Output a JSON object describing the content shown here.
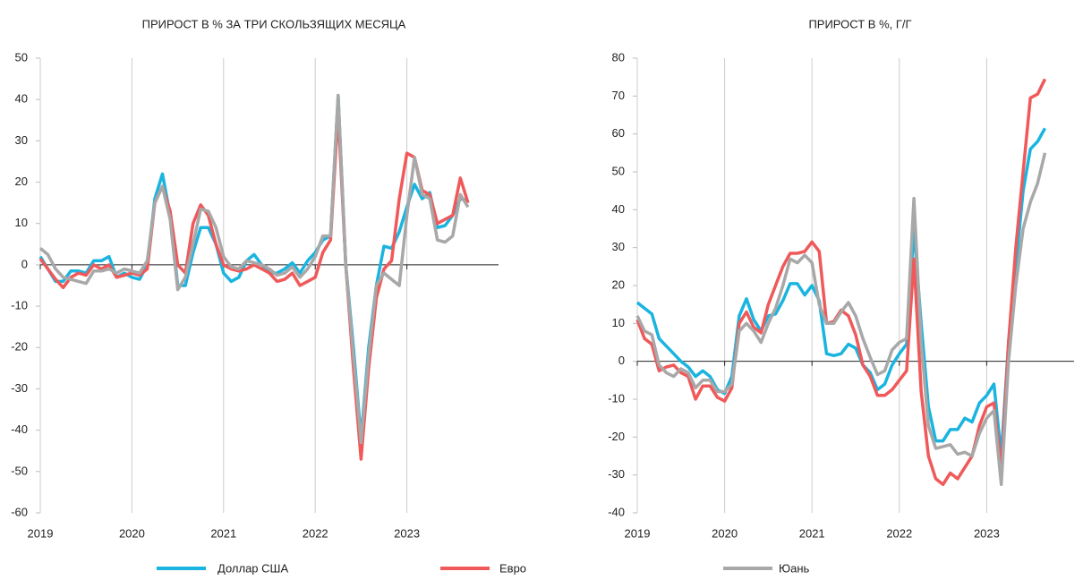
{
  "chart_data": [
    {
      "type": "line",
      "title": "ПРИРОСТ В % ЗА ТРИ СКОЛЬЗЯЩИХ МЕСЯЦА",
      "x": [
        2019,
        2019.083,
        2019.167,
        2019.25,
        2019.333,
        2019.417,
        2019.5,
        2019.583,
        2019.667,
        2019.75,
        2019.833,
        2019.917,
        2020,
        2020.083,
        2020.167,
        2020.25,
        2020.333,
        2020.417,
        2020.5,
        2020.583,
        2020.667,
        2020.75,
        2020.833,
        2020.917,
        2021,
        2021.083,
        2021.167,
        2021.25,
        2021.333,
        2021.417,
        2021.5,
        2021.583,
        2021.667,
        2021.75,
        2021.833,
        2021.917,
        2022,
        2022.083,
        2022.167,
        2022.25,
        2022.333,
        2022.417,
        2022.5,
        2022.583,
        2022.667,
        2022.75,
        2022.833,
        2022.917,
        2023,
        2023.083,
        2023.167,
        2023.25,
        2023.333,
        2023.417,
        2023.5,
        2023.583,
        2023.667
      ],
      "xlim": [
        2019,
        2024
      ],
      "xticks": [
        2019,
        2020,
        2021,
        2022,
        2023
      ],
      "ylim": [
        -60,
        50
      ],
      "yticks": [
        -60,
        -50,
        -40,
        -30,
        -20,
        -10,
        0,
        10,
        20,
        30,
        40,
        50
      ],
      "grid": "x",
      "series": [
        {
          "name": "Доллар США",
          "color": "#1ab4e0",
          "values": [
            2,
            -1,
            -4,
            -4,
            -1.5,
            -1.5,
            -2,
            1,
            1,
            2,
            -3,
            -2,
            -3,
            -3.5,
            0,
            16,
            22,
            12,
            -5,
            -5,
            3,
            9,
            9,
            5,
            -2,
            -4,
            -3,
            1,
            2.5,
            0,
            -2,
            -2,
            -1,
            0.5,
            -2,
            1,
            3,
            6,
            7,
            41,
            0,
            -20,
            -42,
            -20,
            -5,
            4.5,
            4,
            8,
            14,
            19.5,
            16,
            17.5,
            9,
            9.5,
            12,
            16,
            15.5
          ]
        },
        {
          "name": "Евро",
          "color": "#f0595a",
          "values": [
            1.5,
            -1,
            -3.5,
            -5.5,
            -3,
            -2,
            -2.5,
            0,
            -1,
            0,
            -3,
            -2.5,
            -2,
            -2.5,
            -1,
            15,
            19,
            13,
            0,
            -2,
            10,
            14.5,
            12,
            5,
            0,
            -1,
            -1.5,
            -1,
            0,
            -1,
            -2,
            -4,
            -3.5,
            -2,
            -5,
            -4,
            -3,
            3,
            6,
            37,
            0,
            -25,
            -47,
            -25,
            -8,
            -1,
            1,
            16,
            27,
            26,
            18,
            17,
            10,
            11,
            12,
            21,
            15
          ]
        },
        {
          "name": "Юань",
          "color": "#a8a8a8",
          "values": [
            4,
            2.5,
            -1,
            -3,
            -3.5,
            -4,
            -4.5,
            -1.5,
            -1.5,
            -1,
            -2,
            -1,
            -1.5,
            -2,
            1,
            15,
            19,
            11,
            -6,
            -3,
            5,
            13.5,
            13,
            9,
            2,
            -0.5,
            -1,
            1,
            0.5,
            0,
            -1,
            -2.5,
            -2,
            -0.5,
            -3,
            -1,
            2,
            7,
            7,
            41,
            0,
            -22,
            -43,
            -22,
            -5,
            -2,
            -3.5,
            -5,
            12,
            26,
            17,
            16,
            6,
            5.5,
            7,
            17,
            14
          ]
        }
      ]
    },
    {
      "type": "line",
      "title": "ПРИРОСТ В %, Г/Г",
      "x": [
        2019,
        2019.083,
        2019.167,
        2019.25,
        2019.333,
        2019.417,
        2019.5,
        2019.583,
        2019.667,
        2019.75,
        2019.833,
        2019.917,
        2020,
        2020.083,
        2020.167,
        2020.25,
        2020.333,
        2020.417,
        2020.5,
        2020.583,
        2020.667,
        2020.75,
        2020.833,
        2020.917,
        2021,
        2021.083,
        2021.167,
        2021.25,
        2021.333,
        2021.417,
        2021.5,
        2021.583,
        2021.667,
        2021.75,
        2021.833,
        2021.917,
        2022,
        2022.083,
        2022.167,
        2022.25,
        2022.333,
        2022.417,
        2022.5,
        2022.583,
        2022.667,
        2022.75,
        2022.833,
        2022.917,
        2023,
        2023.083,
        2023.167,
        2023.25,
        2023.333,
        2023.417,
        2023.5,
        2023.583,
        2023.667
      ],
      "xlim": [
        2019,
        2024
      ],
      "xticks": [
        2019,
        2020,
        2021,
        2022,
        2023
      ],
      "ylim": [
        -40,
        80
      ],
      "yticks": [
        -40,
        -30,
        -20,
        -10,
        0,
        10,
        20,
        30,
        40,
        50,
        60,
        70,
        80
      ],
      "grid": "x",
      "series": [
        {
          "color": "#1ab4e0",
          "values": [
            15.5,
            14,
            12.5,
            6,
            4,
            2,
            0,
            -1.5,
            -4,
            -2.5,
            -4,
            -7.5,
            -8.5,
            -4,
            12,
            16.5,
            11,
            8,
            12,
            12.5,
            16,
            20.5,
            20.5,
            17.5,
            20,
            16,
            2,
            1.5,
            2,
            4.5,
            3.5,
            -1,
            -3,
            -7.5,
            -6,
            -1,
            2,
            4.5,
            35,
            10,
            -12,
            -21,
            -21,
            -18,
            -18,
            -15,
            -16,
            -11,
            -9,
            -6,
            -25,
            5,
            25,
            45,
            56,
            58,
            61.5
          ]
        },
        {
          "color": "#f0595a",
          "values": [
            11,
            6,
            4.5,
            -2.5,
            -1.5,
            -1,
            -3,
            -4,
            -10,
            -6.5,
            -6.5,
            -9.5,
            -10.5,
            -7,
            10,
            13,
            9,
            7.5,
            15,
            20,
            25,
            28.5,
            28.5,
            29,
            31.5,
            29,
            10,
            10.5,
            13.5,
            12,
            7,
            -1,
            -4,
            -9,
            -9,
            -7.5,
            -5,
            -2.5,
            27,
            -8,
            -25,
            -31,
            -32.5,
            -29.5,
            -31,
            -28,
            -25,
            -17,
            -12,
            -11,
            -29,
            5,
            30,
            50,
            69.5,
            70.5,
            74.5
          ]
        },
        {
          "color": "#a8a8a8",
          "values": [
            12,
            8,
            7,
            -1,
            -3,
            -4,
            -2,
            -3,
            -7,
            -5,
            -5,
            -8,
            -8,
            -6,
            8,
            10,
            8,
            5,
            10,
            14,
            20,
            27,
            26,
            28,
            26,
            15,
            10,
            10,
            13,
            15.5,
            12,
            6,
            1,
            -3.5,
            -2.5,
            3,
            5,
            6,
            43,
            5,
            -17,
            -23,
            -22.5,
            -22,
            -24.5,
            -24,
            -25,
            -19,
            -15,
            -13,
            -32.5,
            0,
            20,
            35,
            42,
            47,
            55
          ]
        }
      ]
    }
  ]
}
